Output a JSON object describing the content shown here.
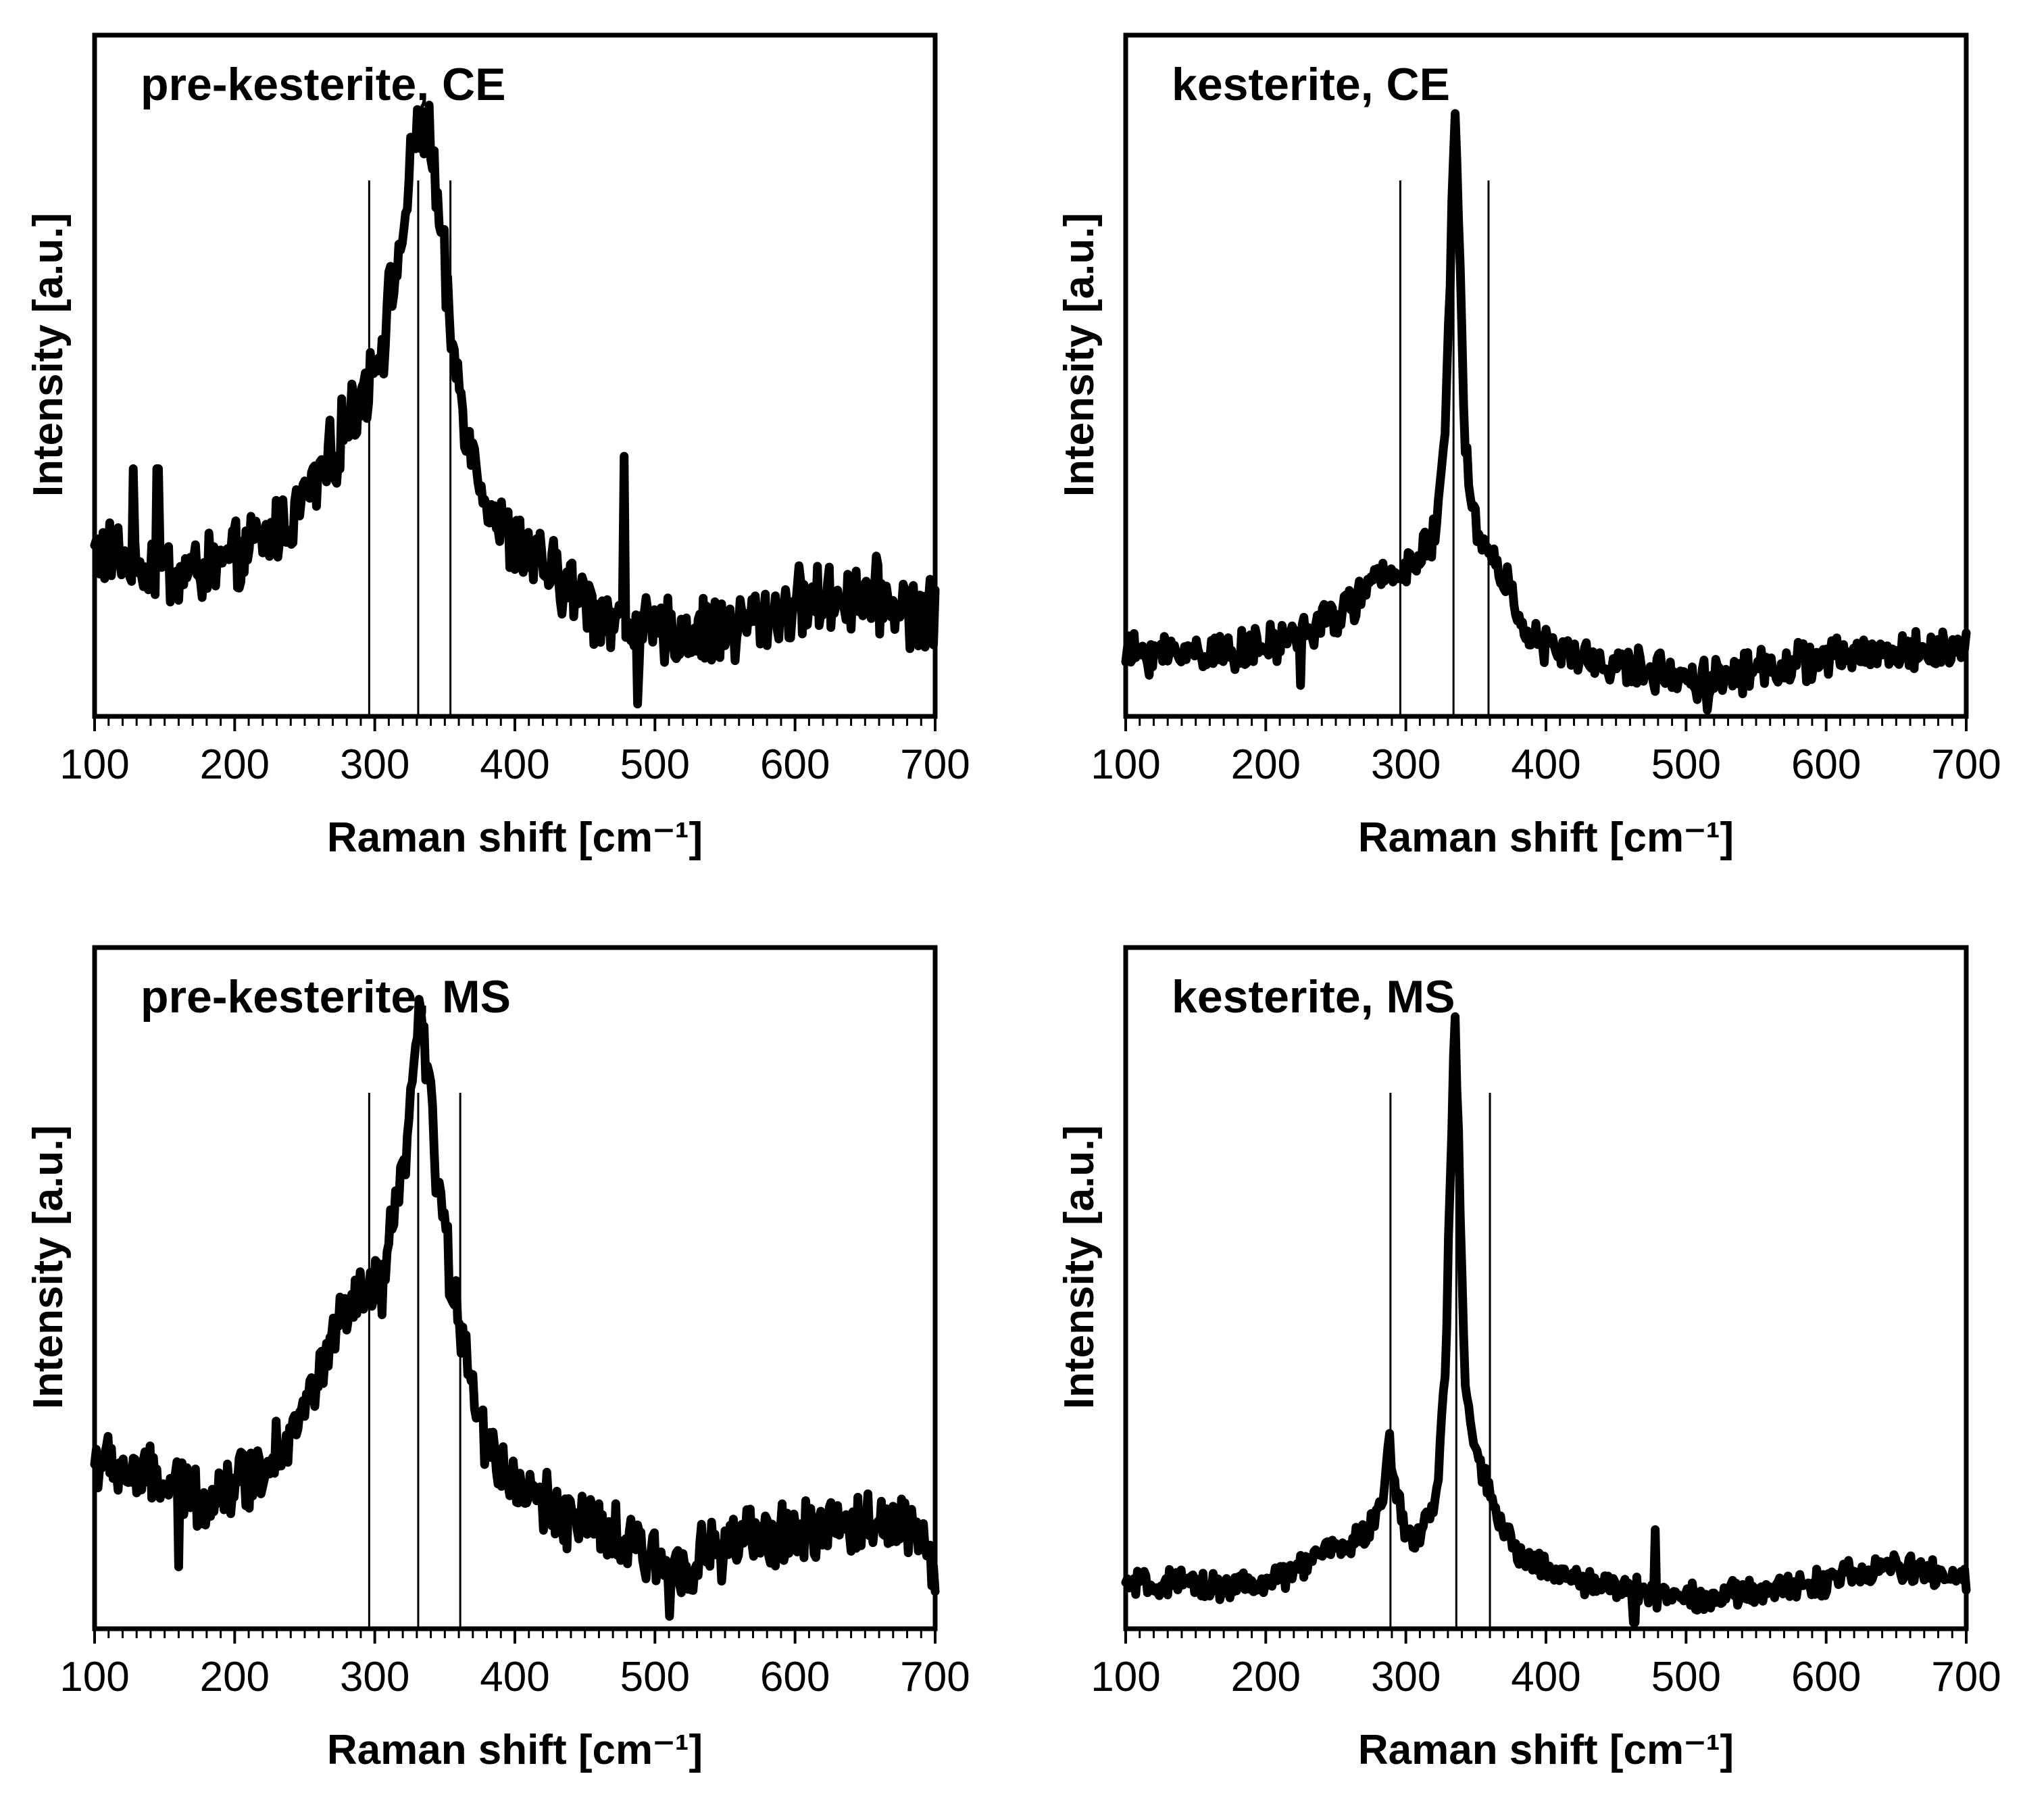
{
  "figure": {
    "panels": [
      {
        "id": "pre-kesterite-ce",
        "title": "pre-kesterite, CE"
      },
      {
        "id": "kesterite-ce",
        "title": "kesterite, CE"
      },
      {
        "id": "pre-kesterite-ms",
        "title": "pre-kesterite, MS"
      },
      {
        "id": "kesterite-ms",
        "title": "kesterite, MS"
      }
    ]
  },
  "chart_data": [
    {
      "type": "line",
      "title": "pre-kesterite, CE",
      "xlabel": "Raman shift [cm⁻¹]",
      "ylabel": "Intensity [a.u.]",
      "xlim": [
        100,
        700
      ],
      "ylim": [
        0,
        1.1
      ],
      "xticks": [
        "100",
        "200",
        "300",
        "400",
        "500",
        "600",
        "700"
      ],
      "reference_lines": [
        296,
        331,
        354
      ],
      "series": [
        {
          "name": "pre-kesterite, CE",
          "baseline": [
            [
              100,
              0.27
            ],
            [
              160,
              0.23
            ],
            [
              200,
              0.25
            ],
            [
              240,
              0.32
            ],
            [
              270,
              0.42
            ],
            [
              290,
              0.52
            ],
            [
              305,
              0.6
            ],
            [
              320,
              0.78
            ],
            [
              330,
              0.95
            ],
            [
              338,
              0.95
            ],
            [
              345,
              0.82
            ],
            [
              355,
              0.6
            ],
            [
              370,
              0.42
            ],
            [
              390,
              0.3
            ],
            [
              420,
              0.24
            ],
            [
              460,
              0.17
            ],
            [
              500,
              0.13
            ],
            [
              550,
              0.14
            ],
            [
              600,
              0.18
            ],
            [
              650,
              0.2
            ],
            [
              700,
              0.16
            ]
          ],
          "noise": 0.045,
          "spikes": [
            [
              478,
              0.42
            ],
            [
              488,
              0.02
            ],
            [
              128,
              0.4
            ],
            [
              145,
              0.4
            ]
          ]
        }
      ]
    },
    {
      "type": "line",
      "title": "kesterite, CE",
      "xlabel": "Raman shift [cm⁻¹]",
      "ylabel": "Intensity [a.u.]",
      "xlim": [
        100,
        700
      ],
      "ylim": [
        0,
        1.1
      ],
      "xticks": [
        "100",
        "200",
        "300",
        "400",
        "500",
        "600",
        "700"
      ],
      "reference_lines": [
        296,
        334,
        359
      ],
      "series": [
        {
          "name": "kesterite, CE",
          "baseline": [
            [
              100,
              0.1
            ],
            [
              200,
              0.11
            ],
            [
              250,
              0.16
            ],
            [
              280,
              0.22
            ],
            [
              295,
              0.24
            ],
            [
              310,
              0.25
            ],
            [
              322,
              0.3
            ],
            [
              328,
              0.45
            ],
            [
              332,
              0.75
            ],
            [
              335,
              1.0
            ],
            [
              338,
              0.8
            ],
            [
              342,
              0.45
            ],
            [
              350,
              0.3
            ],
            [
              360,
              0.26
            ],
            [
              375,
              0.2
            ],
            [
              390,
              0.12
            ],
            [
              430,
              0.09
            ],
            [
              510,
              0.06
            ],
            [
              560,
              0.08
            ],
            [
              620,
              0.1
            ],
            [
              700,
              0.11
            ]
          ],
          "noise": 0.025,
          "spikes": [
            [
              225,
              0.05
            ],
            [
              515,
              0.01
            ]
          ]
        }
      ]
    },
    {
      "type": "line",
      "title": "pre-kesterite, MS",
      "xlabel": "Raman shift [cm⁻¹]",
      "ylabel": "Intensity [a.u.]",
      "xlim": [
        100,
        700
      ],
      "ylim": [
        0,
        1.1
      ],
      "xticks": [
        "100",
        "200",
        "300",
        "400",
        "500",
        "600",
        "700"
      ],
      "reference_lines": [
        296,
        331,
        361
      ],
      "series": [
        {
          "name": "pre-kesterite, MS",
          "baseline": [
            [
              100,
              0.27
            ],
            [
              140,
              0.24
            ],
            [
              180,
              0.21
            ],
            [
              220,
              0.26
            ],
            [
              250,
              0.35
            ],
            [
              270,
              0.47
            ],
            [
              290,
              0.53
            ],
            [
              305,
              0.55
            ],
            [
              318,
              0.7
            ],
            [
              326,
              0.85
            ],
            [
              331,
              0.98
            ],
            [
              337,
              0.92
            ],
            [
              345,
              0.72
            ],
            [
              355,
              0.55
            ],
            [
              365,
              0.47
            ],
            [
              375,
              0.32
            ],
            [
              400,
              0.23
            ],
            [
              450,
              0.17
            ],
            [
              510,
              0.1
            ],
            [
              560,
              0.14
            ],
            [
              620,
              0.16
            ],
            [
              680,
              0.18
            ],
            [
              700,
              0.1
            ]
          ],
          "noise": 0.04,
          "spikes": [
            [
              160,
              0.1
            ],
            [
              510,
              0.02
            ]
          ]
        }
      ]
    },
    {
      "type": "line",
      "title": "kesterite, MS",
      "xlabel": "Raman shift [cm⁻¹]",
      "ylabel": "Intensity [a.u.]",
      "xlim": [
        100,
        700
      ],
      "ylim": [
        0,
        1.1
      ],
      "xticks": [
        "100",
        "200",
        "300",
        "400",
        "500",
        "600",
        "700"
      ],
      "reference_lines": [
        289,
        336,
        360
      ],
      "series": [
        {
          "name": "kesterite, MS",
          "baseline": [
            [
              100,
              0.07
            ],
            [
              200,
              0.07
            ],
            [
              240,
              0.12
            ],
            [
              270,
              0.15
            ],
            [
              283,
              0.2
            ],
            [
              288,
              0.3
            ],
            [
              293,
              0.22
            ],
            [
              300,
              0.15
            ],
            [
              312,
              0.16
            ],
            [
              322,
              0.22
            ],
            [
              328,
              0.4
            ],
            [
              332,
              0.75
            ],
            [
              335,
              1.0
            ],
            [
              338,
              0.75
            ],
            [
              342,
              0.4
            ],
            [
              350,
              0.28
            ],
            [
              365,
              0.18
            ],
            [
              380,
              0.12
            ],
            [
              420,
              0.08
            ],
            [
              470,
              0.06
            ],
            [
              520,
              0.05
            ],
            [
              580,
              0.07
            ],
            [
              650,
              0.1
            ],
            [
              700,
              0.08
            ]
          ],
          "noise": 0.018,
          "spikes": [
            [
              478,
              0.16
            ],
            [
              463,
              0.01
            ]
          ]
        }
      ]
    }
  ]
}
